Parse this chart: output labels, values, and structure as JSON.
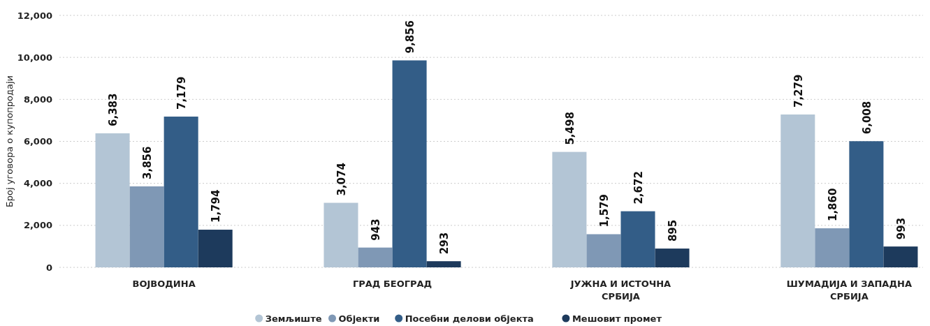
{
  "chart_data": {
    "type": "bar",
    "ylabel": "Број уговора о купопродаји",
    "categories": [
      "ВОЈВОДИНА",
      "ГРАД БЕОГРАД",
      "ЈУЖНА И ИСТОЧНА СРБИЈА",
      "ШУМАДИЈА И ЗАПАДНА СРБИЈА"
    ],
    "series": [
      {
        "name": "Земљиште",
        "color": "#b3c5d5",
        "values": [
          6383,
          3074,
          5498,
          7279
        ],
        "value_labels": [
          "6,383",
          "3,074",
          "5,498",
          "7,279"
        ]
      },
      {
        "name": "Објекти",
        "color": "#7f98b5",
        "values": [
          3856,
          943,
          1579,
          1860
        ],
        "value_labels": [
          "3,856",
          "943",
          "1,579",
          "1,860"
        ]
      },
      {
        "name": "Посебни делови објекта",
        "color": "#335d87",
        "values": [
          7179,
          9856,
          2672,
          6008
        ],
        "value_labels": [
          "7,179",
          "9,856",
          "2,672",
          "6,008"
        ]
      },
      {
        "name": "Мешовит промет",
        "color": "#1d3a5c",
        "values": [
          1794,
          293,
          895,
          993
        ],
        "value_labels": [
          "1,794",
          "293",
          "895",
          "993"
        ]
      }
    ],
    "ylim": [
      0,
      12000
    ],
    "yticks": [
      {
        "value": 0,
        "label": "0"
      },
      {
        "value": 2000,
        "label": "2,000"
      },
      {
        "value": 4000,
        "label": "4,000"
      },
      {
        "value": 6000,
        "label": "6,000"
      },
      {
        "value": 8000,
        "label": "8,000"
      },
      {
        "value": 10000,
        "label": "10,000"
      },
      {
        "value": 12000,
        "label": "12,000"
      }
    ],
    "grid": "y",
    "legend": "bottom"
  }
}
